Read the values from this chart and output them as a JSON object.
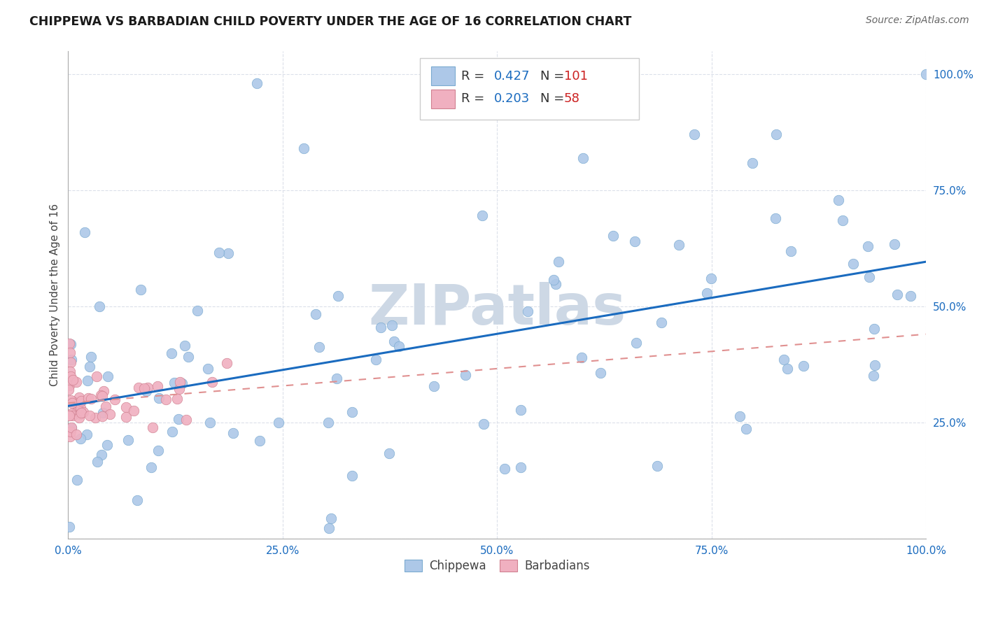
{
  "title": "CHIPPEWA VS BARBADIAN CHILD POVERTY UNDER THE AGE OF 16 CORRELATION CHART",
  "source": "Source: ZipAtlas.com",
  "ylabel": "Child Poverty Under the Age of 16",
  "chippewa_color": "#adc8e8",
  "chippewa_edge": "#7aaad0",
  "barbadian_color": "#f0b0c0",
  "barbadian_edge": "#d08090",
  "trendline_chippewa_color": "#1a6bbf",
  "trendline_barbadian_color": "#e09090",
  "watermark_color": "#cdd8e5",
  "background_color": "#ffffff",
  "grid_color": "#d8dde8",
  "legend_R_color": "#1a6bbf",
  "legend_N_color": "#cc2222",
  "tick_color": "#1a6bbf",
  "chippewa_R": 0.427,
  "chippewa_N": 101,
  "barbadian_R": 0.203,
  "barbadian_N": 58
}
